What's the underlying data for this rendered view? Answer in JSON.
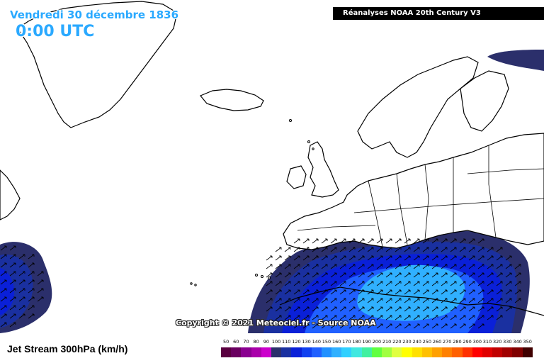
{
  "header": {
    "date": "Vendredi 30 décembre 1836",
    "time": "0:00 UTC",
    "source_banner": "Réanalyses NOAA 20th Century V3"
  },
  "copyright": "Copyright © 2021 Meteociel.fr - Source NOAA",
  "footer": {
    "map_title": "Jet Stream 300hPa (km/h)"
  },
  "legend": {
    "values": [
      "50",
      "60",
      "70",
      "80",
      "90",
      "100",
      "110",
      "120",
      "130",
      "140",
      "150",
      "160",
      "170",
      "180",
      "190",
      "200",
      "210",
      "220",
      "230",
      "240",
      "250",
      "260",
      "270",
      "280",
      "290",
      "300",
      "310",
      "320",
      "330",
      "340",
      "350"
    ],
    "colors": [
      "#5a0040",
      "#6a0060",
      "#8a0090",
      "#aa00aa",
      "#cc00cc",
      "#2b2f6b",
      "#1a30a0",
      "#0a20d8",
      "#1040f0",
      "#2060ff",
      "#2090ff",
      "#30b0ff",
      "#30d0ff",
      "#40e8e0",
      "#40f0a0",
      "#60ff40",
      "#a0ff40",
      "#e0ff40",
      "#ffff00",
      "#ffe000",
      "#ffc000",
      "#ffa000",
      "#ff8000",
      "#ff6000",
      "#ff3000",
      "#ff0000",
      "#e00000",
      "#c00000",
      "#a00000",
      "#800000",
      "#400000"
    ]
  },
  "map_colors": {
    "ocean": "#ffffff",
    "coast": "#000000",
    "jet_100": "#2b2f6b",
    "jet_110": "#1a30a0",
    "jet_120": "#0a20d8",
    "jet_140": "#2060ff",
    "jet_160": "#30b0ff"
  }
}
